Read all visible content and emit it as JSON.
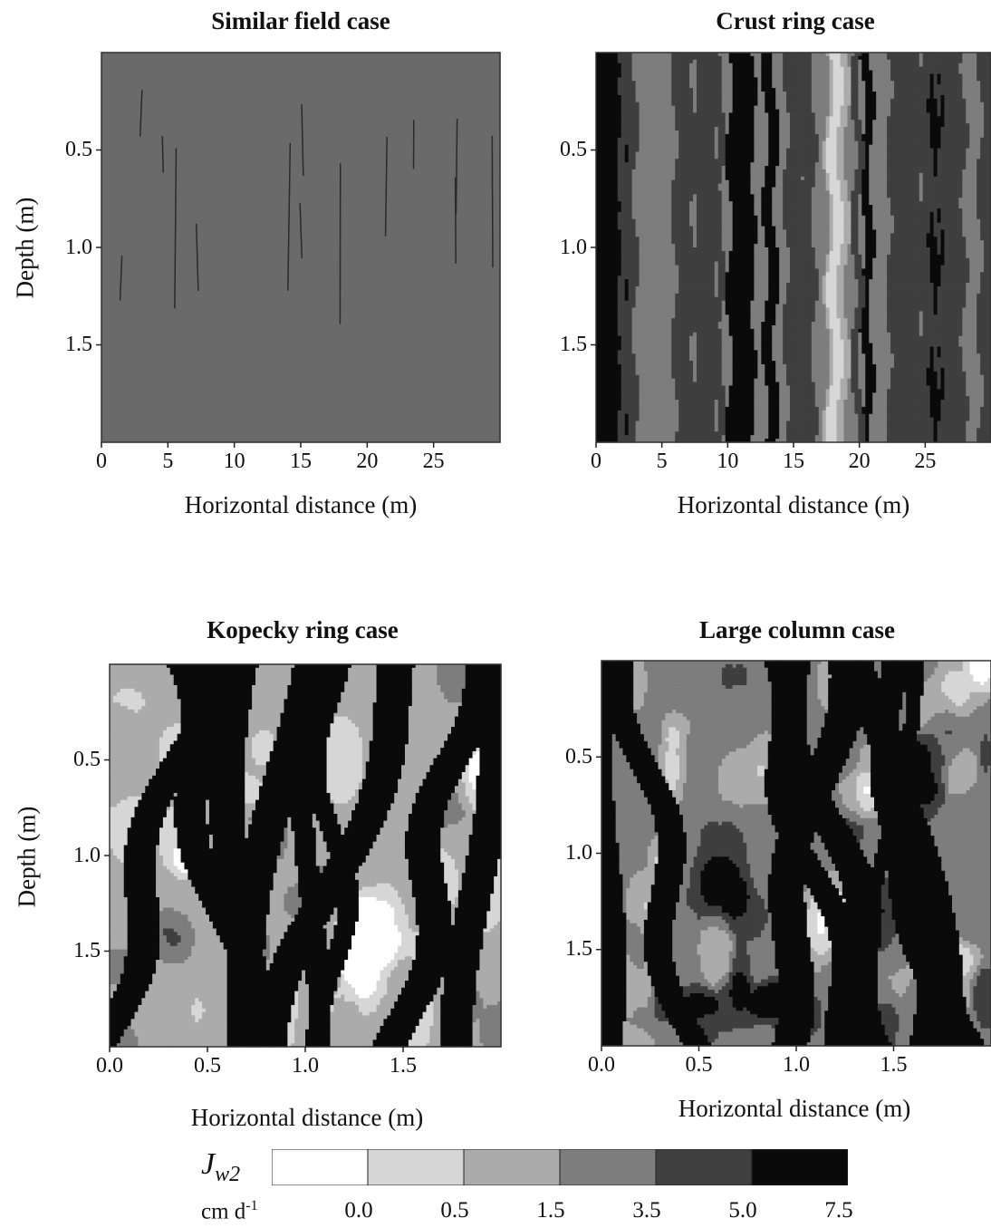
{
  "chart_data": [
    {
      "type": "heatmap",
      "title": "Similar field case",
      "xlabel": "Horizontal distance (m)",
      "ylabel": "Depth (m)",
      "xlim": [
        0,
        30
      ],
      "ylim": [
        0,
        2
      ],
      "xticks": [
        "0",
        "5",
        "10",
        "15",
        "20",
        "25"
      ],
      "yticks": [
        "0.5",
        "1.0",
        "1.5"
      ],
      "pattern": "nearly uniform, predominantly 3.5–5.0 class with faint thin vertical streaks"
    },
    {
      "type": "heatmap",
      "title": "Crust ring case",
      "xlabel": "Horizontal distance (m)",
      "ylabel": "",
      "xlim": [
        0,
        30
      ],
      "ylim": [
        0,
        2
      ],
      "xticks": [
        "0",
        "5",
        "10",
        "15",
        "20",
        "25"
      ],
      "yticks": [
        "0.5",
        "1.0",
        "1.5"
      ],
      "pattern": "vertical banding: dark narrow columns on mid-grey with a light column near 18 m"
    },
    {
      "type": "heatmap",
      "title": "Kopecky ring case",
      "xlabel": "Horizontal distance (m)",
      "ylabel": "Depth (m)",
      "xlim": [
        0,
        2
      ],
      "ylim": [
        0,
        2
      ],
      "xticks": [
        "0.0",
        "0.5",
        "1.0",
        "1.5"
      ],
      "yticks": [
        "0.5",
        "1.0",
        "1.5"
      ],
      "pattern": "high-contrast patchy field: light blobs with dark branching channels"
    },
    {
      "type": "heatmap",
      "title": "Large column case",
      "xlabel": "Horizontal distance (m)",
      "ylabel": "",
      "xlim": [
        0,
        2
      ],
      "ylim": [
        0,
        2
      ],
      "xticks": [
        "0.0",
        "0.5",
        "1.0",
        "1.5"
      ],
      "yticks": [
        "0.5",
        "1.0",
        "1.5"
      ],
      "pattern": "patchy field similar to Kopecky ring case but darker overall"
    }
  ],
  "legend": {
    "symbol": "J",
    "subscript": "w2",
    "unit": "cm d",
    "unit_exponent": "-1",
    "tick_labels": [
      "0.0",
      "0.5",
      "1.5",
      "3.5",
      "5.0",
      "7.5"
    ],
    "class_colors": [
      "#ffffff",
      "#d6d6d6",
      "#ababab",
      "#7d7d7d",
      "#3f3f3f",
      "#0a0a0a"
    ]
  }
}
